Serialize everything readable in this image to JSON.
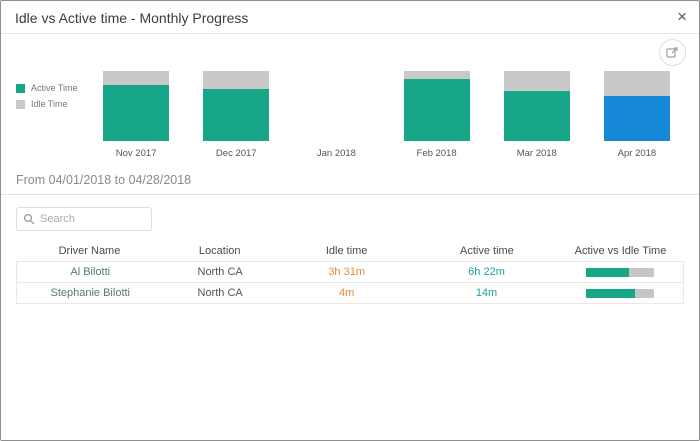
{
  "dialog": {
    "title": "Idle vs Active time - Monthly Progress",
    "close_label": "×"
  },
  "chart_data": {
    "type": "bar",
    "stacked": true,
    "unit": "percent-of-month-total",
    "categories": [
      "Nov 2017",
      "Dec 2017",
      "Jan 2018",
      "Feb 2018",
      "Mar 2018",
      "Apr 2018"
    ],
    "series": [
      {
        "name": "Active Time",
        "values": [
          80,
          75,
          0,
          88,
          71,
          64
        ]
      },
      {
        "name": "Idle Time",
        "values": [
          20,
          25,
          0,
          12,
          29,
          36
        ]
      }
    ],
    "selected_category": "Apr 2018",
    "colors": {
      "active": "#18a689",
      "idle": "#c9c9c9",
      "selected_active": "#1787d8"
    },
    "legend": [
      {
        "label": "Active Time",
        "color": "#18a689"
      },
      {
        "label": "Idle Time",
        "color": "#c9c9c9"
      }
    ],
    "legend_position": "left"
  },
  "filter": {
    "range_label": "From 04/01/2018 to 04/28/2018"
  },
  "search": {
    "placeholder": "Search"
  },
  "table": {
    "columns": [
      "Driver Name",
      "Location",
      "Idle time",
      "Active time",
      "Active vs Idle Time"
    ],
    "rows": [
      {
        "driver_name": "Al Bilotti",
        "location": "North CA",
        "idle_time": "3h 31m",
        "active_time": "6h 22m",
        "active_pct": 64
      },
      {
        "driver_name": "Stephanie Bilotti",
        "location": "North CA",
        "idle_time": "4m",
        "active_time": "14m",
        "active_pct": 72
      }
    ]
  },
  "colors": {
    "active_bar": "#18a689",
    "idle_track": "#c6c6c6",
    "idle_text": "#e78a3d",
    "active_text": "#1e9e9e"
  }
}
